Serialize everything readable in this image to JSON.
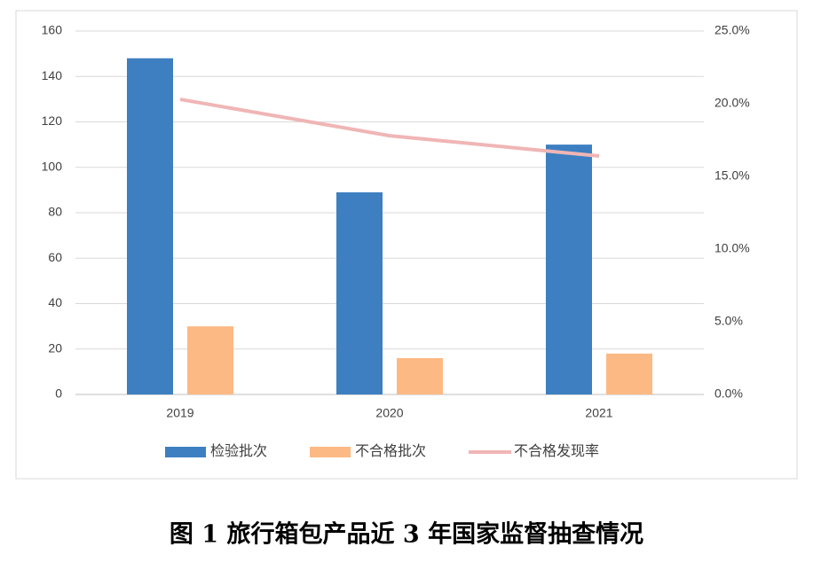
{
  "chart_data": {
    "type": "bar",
    "caption": "图 1  旅行箱包产品近 3 年国家监督抽查情况",
    "categories": [
      "2019",
      "2020",
      "2021"
    ],
    "series": [
      {
        "name": "检验批次",
        "type": "bar",
        "color": "#3d7fc1",
        "values": [
          148,
          89,
          110
        ]
      },
      {
        "name": "不合格批次",
        "type": "bar",
        "color": "#fdb984",
        "values": [
          30,
          16,
          18
        ]
      },
      {
        "name": "不合格发现率",
        "type": "line",
        "axis": "y2",
        "color": "#f0b5b5",
        "values": [
          20.3,
          17.8,
          16.4
        ]
      }
    ],
    "ylim": [
      0,
      160
    ],
    "yticks": [
      0,
      20,
      40,
      60,
      80,
      100,
      120,
      140,
      160
    ],
    "y2lim": [
      0,
      25
    ],
    "y2ticks": [
      {
        "value": 0,
        "label": "0.0%"
      },
      {
        "value": 5,
        "label": "5.0%"
      },
      {
        "value": 10,
        "label": "10.0%"
      },
      {
        "value": 15,
        "label": "15.0%"
      },
      {
        "value": 20,
        "label": "20.0%"
      },
      {
        "value": 25,
        "label": "25.0%"
      }
    ],
    "grid": true,
    "legend": "bottom"
  }
}
